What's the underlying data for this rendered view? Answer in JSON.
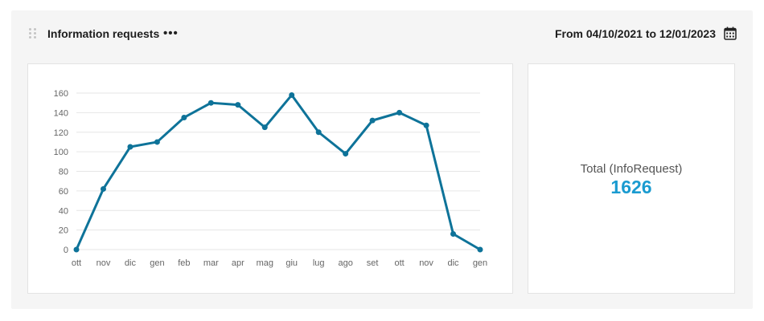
{
  "widget": {
    "title": "Information requests",
    "more_icon": "more-horizontal-icon",
    "date_range": "From 04/10/2021 to 12/01/2023",
    "calendar_icon": "calendar-icon"
  },
  "total": {
    "label": "Total (InfoRequest)",
    "value": "1626",
    "color": "#1a9bd0"
  },
  "chart_data": {
    "type": "line",
    "categories": [
      "ott",
      "nov",
      "dic",
      "gen",
      "feb",
      "mar",
      "apr",
      "mag",
      "giu",
      "lug",
      "ago",
      "set",
      "ott",
      "nov",
      "dic",
      "gen"
    ],
    "series": [
      {
        "values": [
          0,
          62,
          105,
          110,
          135,
          150,
          148,
          125,
          158,
          120,
          98,
          132,
          140,
          127,
          16,
          0
        ]
      }
    ],
    "yticks": [
      0,
      20,
      40,
      60,
      80,
      100,
      120,
      140,
      160
    ],
    "ylim": [
      0,
      160
    ],
    "line_color": "#0e7399",
    "grid": true,
    "title": "",
    "xlabel": "",
    "ylabel": ""
  }
}
